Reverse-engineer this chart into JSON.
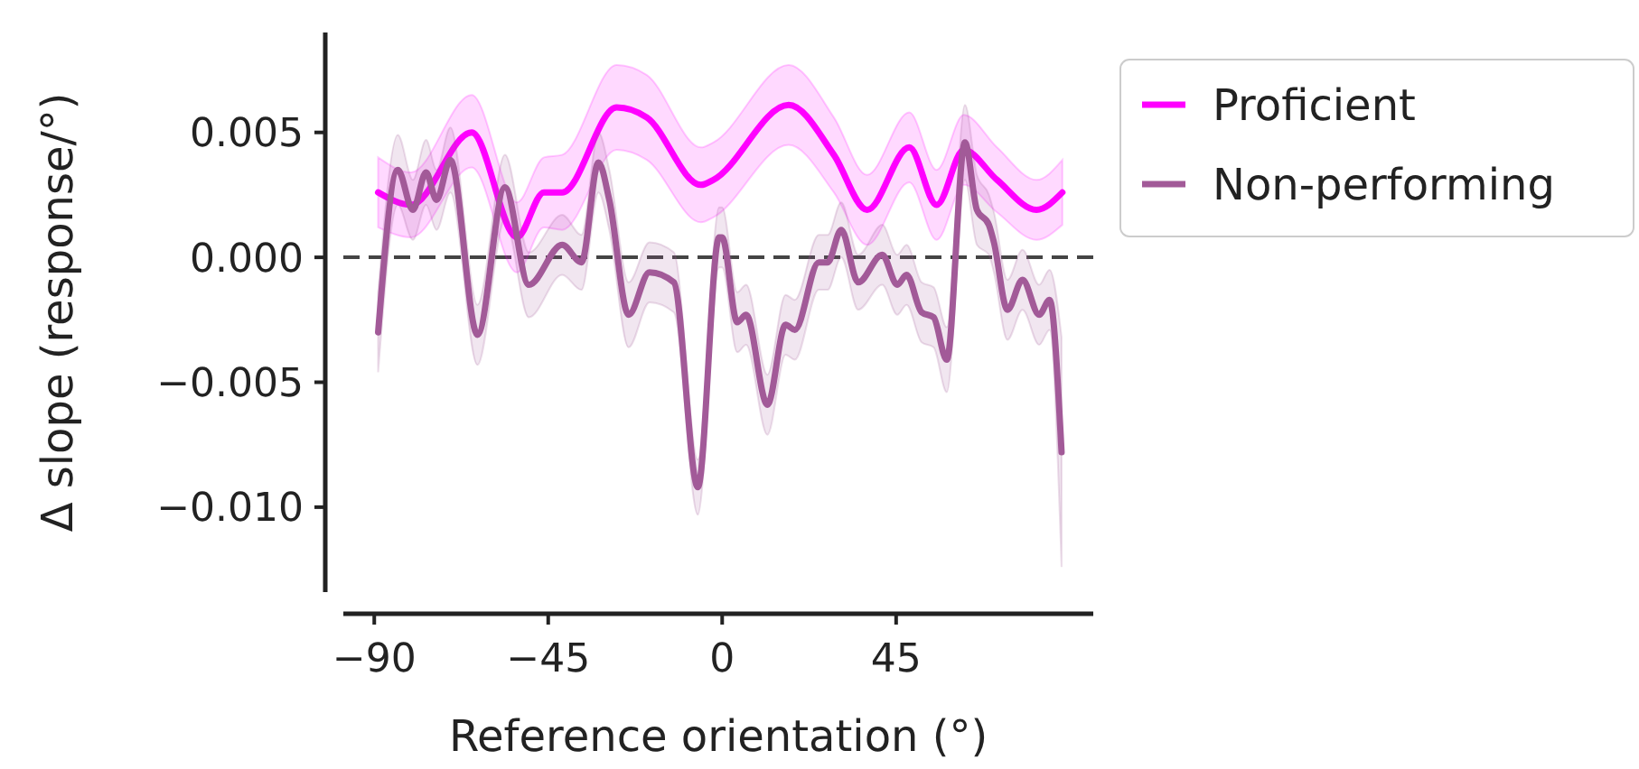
{
  "chart_data": {
    "type": "line",
    "xlabel": "Reference orientation (°)",
    "ylabel": "Δ slope (response/°)",
    "xlim": [
      -98,
      96
    ],
    "ylim": [
      -0.0134,
      0.009
    ],
    "xticks": [
      {
        "value": -90,
        "label": "−90"
      },
      {
        "value": -45,
        "label": "−45"
      },
      0,
      45
    ],
    "yticks": [
      {
        "value": -0.01,
        "label": "−0.010"
      },
      {
        "value": -0.005,
        "label": "−0.005"
      },
      {
        "value": 0,
        "label": "0.000"
      },
      {
        "value": 0.005,
        "label": "0.005"
      }
    ],
    "grid": false,
    "legend": "top right",
    "marker": "none",
    "line_style": "solid",
    "ref_lines": [
      {
        "axis": "y",
        "value": 0,
        "color": "#444444",
        "line_style": "dashed"
      }
    ],
    "series": [
      {
        "name": "Proficient",
        "color": "#ff00ff",
        "x": [
          -89,
          -80.5,
          -64.8,
          -53.1,
          -46.1,
          -41.4,
          -27.3,
          -19.5,
          -5.5,
          -2.3,
          17.2,
          28.9,
          37.5,
          48.4,
          55.5,
          62.5,
          71.1,
          81.3,
          88
        ],
        "values": [
          0.0026,
          0.0021,
          0.005,
          0.0008,
          0.0026,
          0.0026,
          0.006,
          0.0056,
          0.0029,
          0.0031,
          0.0061,
          0.0041,
          0.0019,
          0.0044,
          0.0021,
          0.0043,
          0.0031,
          0.0019,
          0.0026
        ],
        "lower": [
          0.0012,
          0.0008,
          0.0036,
          -0.0006,
          0.0012,
          0.0011,
          0.0043,
          0.0039,
          0.0014,
          0.0016,
          0.0045,
          0.0026,
          0.0005,
          0.003,
          0.0007,
          0.0029,
          0.0018,
          0.0007,
          0.0013
        ],
        "upper": [
          0.004,
          0.0034,
          0.0065,
          0.0022,
          0.004,
          0.0041,
          0.0077,
          0.0073,
          0.0044,
          0.0046,
          0.0077,
          0.0056,
          0.0033,
          0.0058,
          0.0035,
          0.0057,
          0.0044,
          0.0031,
          0.0039
        ]
      },
      {
        "name": "Non-performing",
        "color": "#a25a98",
        "x": [
          -89,
          -83.9,
          -80,
          -76.6,
          -73.9,
          -70.3,
          -63.3,
          -56.2,
          -50,
          -41.4,
          -36.4,
          -32,
          -29.2,
          -24.2,
          -18.8,
          -12.5,
          -6.3,
          -0.8,
          0,
          3.9,
          6.2,
          11.7,
          16.4,
          18.8,
          25,
          27.3,
          30.8,
          35.2,
          41.4,
          45.3,
          47.7,
          51.6,
          54.7,
          58.1,
          62.8,
          65.9,
          69,
          70.3,
          73.8,
          77.7,
          82,
          84.7,
          87.8
        ],
        "values": [
          -0.003,
          0.0035,
          0.0019,
          0.0034,
          0.0023,
          0.0039,
          -0.0031,
          0.0028,
          -0.0011,
          0.0005,
          -0.0002,
          0.0038,
          0.0023,
          -0.0023,
          -0.0006,
          -0.001,
          -0.0092,
          0.0008,
          0.0008,
          -0.0026,
          -0.0023,
          -0.0059,
          -0.0027,
          -0.0029,
          -0.0002,
          -0.0002,
          0.0011,
          -0.001,
          0.0001,
          -0.0011,
          -0.0007,
          -0.0022,
          -0.0024,
          -0.0041,
          0.0046,
          0.0019,
          0.0013,
          0.0006,
          -0.0021,
          -0.0009,
          -0.0023,
          -0.0017,
          -0.0078
        ],
        "lower": [
          -0.0046,
          0.0021,
          0.0007,
          0.0021,
          0.0011,
          0.0026,
          -0.0043,
          0.0015,
          -0.0024,
          -0.0007,
          -0.0013,
          0.0026,
          0.0011,
          -0.0036,
          -0.0018,
          -0.0022,
          -0.0103,
          -0.0004,
          -0.0004,
          -0.0038,
          -0.0035,
          -0.0071,
          -0.0039,
          -0.0041,
          -0.0013,
          -0.0013,
          0,
          -0.0021,
          -0.0011,
          -0.0023,
          -0.0019,
          -0.0034,
          -0.0036,
          -0.0054,
          0.0031,
          0.0005,
          0.0001,
          -0.0006,
          -0.0033,
          -0.0021,
          -0.0035,
          -0.0029,
          -0.0124
        ],
        "upper": [
          -0.0014,
          0.0049,
          0.0031,
          0.0047,
          0.0035,
          0.0052,
          -0.0019,
          0.0041,
          0.0002,
          0.0017,
          0.0009,
          0.005,
          0.0035,
          -0.001,
          0.0006,
          0.0002,
          -0.0081,
          0.002,
          0.002,
          -0.0014,
          -0.0011,
          -0.0047,
          -0.0015,
          -0.0017,
          0.0009,
          0.0009,
          0.0022,
          0.0001,
          0.0013,
          0.0001,
          0.0005,
          -0.001,
          -0.0012,
          -0.0028,
          0.0061,
          0.0033,
          0.0025,
          0.0018,
          -0.0009,
          0.0003,
          -0.0011,
          -0.0005,
          -0.0032
        ]
      }
    ]
  }
}
